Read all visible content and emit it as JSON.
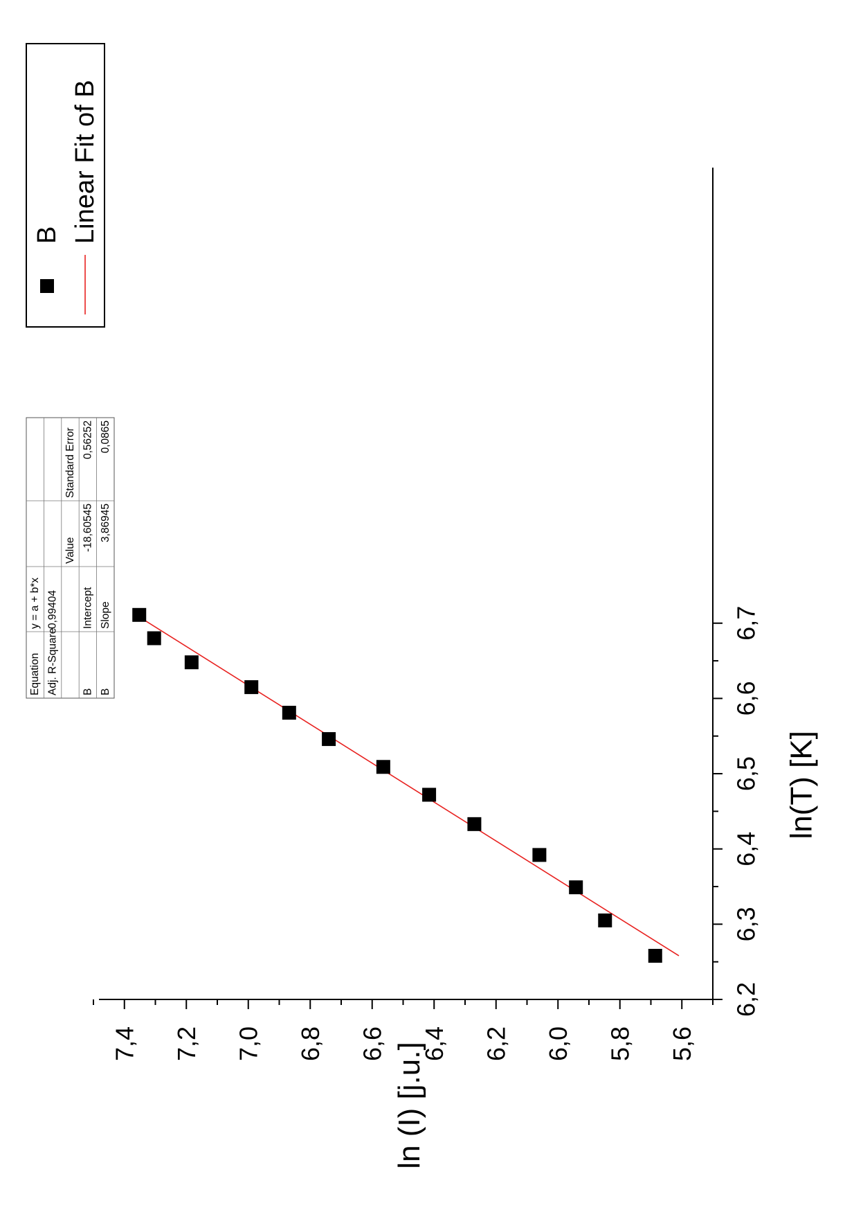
{
  "chart_data": {
    "type": "scatter",
    "xlabel": "ln(T) [K]",
    "ylabel": "ln (I) [j.u.]",
    "xlim": [
      6.2,
      6.75
    ],
    "ylim": [
      5.5,
      7.5
    ],
    "x_ticks": [
      "6,2",
      "6,3",
      "6,4",
      "6,5",
      "6,6",
      "6,7"
    ],
    "y_ticks": [
      "5,6",
      "5,8",
      "6,0",
      "6,2",
      "6,4",
      "6,6",
      "6,8",
      "7,0",
      "7,2",
      "7,4"
    ],
    "rotation": "figure rotated 90 degrees counter-clockwise",
    "series": [
      {
        "name": "B",
        "marker": "filled-square",
        "color": "#000000",
        "points": [
          {
            "x": 6.258,
            "y": 5.686
          },
          {
            "x": 6.305,
            "y": 5.848
          },
          {
            "x": 6.349,
            "y": 5.942
          },
          {
            "x": 6.392,
            "y": 6.06
          },
          {
            "x": 6.433,
            "y": 6.27
          },
          {
            "x": 6.472,
            "y": 6.416
          },
          {
            "x": 6.509,
            "y": 6.564
          },
          {
            "x": 6.546,
            "y": 6.74
          },
          {
            "x": 6.581,
            "y": 6.868
          },
          {
            "x": 6.615,
            "y": 6.99
          },
          {
            "x": 6.648,
            "y": 7.183
          },
          {
            "x": 6.68,
            "y": 7.304
          },
          {
            "x": 6.711,
            "y": 7.352
          }
        ]
      },
      {
        "name": "Linear Fit of B",
        "type": "line",
        "color": "#e8211f",
        "intercept": -18.60545,
        "slope": 3.86945,
        "x_range": [
          6.258,
          6.711
        ]
      }
    ],
    "legend": {
      "placement": "top-right",
      "entries": [
        "B",
        "Linear Fit of B"
      ]
    },
    "fit_table": {
      "rows": [
        [
          "Equation",
          "y = a + b*x",
          "",
          ""
        ],
        [
          "Adj. R-Square",
          "0,99404",
          "",
          ""
        ],
        [
          "",
          "",
          "Value",
          "Standard Error"
        ],
        [
          "B",
          "Intercept",
          "-18,60545",
          "0,56252"
        ],
        [
          "B",
          "Slope",
          "3,86945",
          "0,0865"
        ]
      ]
    }
  }
}
